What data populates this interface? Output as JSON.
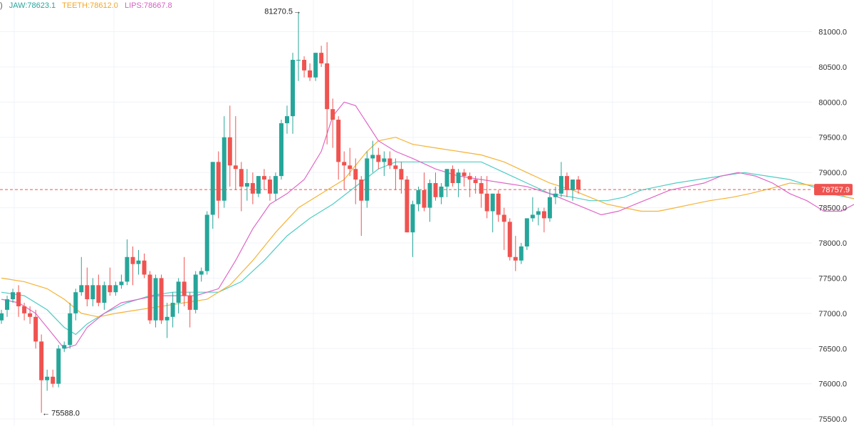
{
  "legend": {
    "prefix": ")",
    "jaw": "JAW:78623.1",
    "teeth": "TEETH:78612.0",
    "lips": "LIPS:78667.8"
  },
  "colors": {
    "up": "#26a69a",
    "down": "#ef5350",
    "jaw": "#4ecdc4",
    "teeth": "#f5b335",
    "lips": "#e066c8",
    "grid": "#f0f3fa",
    "price_line": "#ef5350",
    "price_label": "#ef5350"
  },
  "chart_data": {
    "type": "candlestick",
    "indicator": "Alligator",
    "ylim": [
      75400,
      81450
    ],
    "y_ticks": [
      "81000.0",
      "80500.0",
      "80000.0",
      "79500.0",
      "79000.0",
      "78500.0",
      "78000.0",
      "77500.0",
      "77000.0",
      "76500.0",
      "76000.0",
      "75500.0"
    ],
    "current_price": "78757.9",
    "high_annotation": "81270.5",
    "low_annotation": "75588.0",
    "candles": [
      [
        76900,
        77050,
        76850,
        77000
      ],
      [
        77050,
        77250,
        76950,
        77200
      ],
      [
        77200,
        77350,
        77150,
        77300
      ],
      [
        77300,
        77400,
        76950,
        77100
      ],
      [
        77100,
        77150,
        76900,
        77000
      ],
      [
        77000,
        77100,
        76850,
        76950
      ],
      [
        76950,
        77050,
        76500,
        76600
      ],
      [
        76600,
        76700,
        75588,
        76050
      ],
      [
        76050,
        76200,
        75900,
        76100
      ],
      [
        76100,
        76200,
        75950,
        76000
      ],
      [
        76000,
        76550,
        75950,
        76500
      ],
      [
        76500,
        76600,
        76450,
        76550
      ],
      [
        76550,
        77150,
        76500,
        77000
      ],
      [
        77000,
        77350,
        76900,
        77300
      ],
      [
        77300,
        77800,
        77250,
        77400
      ],
      [
        77400,
        77650,
        77100,
        77200
      ],
      [
        77200,
        77500,
        77100,
        77400
      ],
      [
        77400,
        77550,
        77100,
        77150
      ],
      [
        77150,
        77450,
        77050,
        77400
      ],
      [
        77400,
        77650,
        77250,
        77300
      ],
      [
        77300,
        77450,
        77250,
        77400
      ],
      [
        77400,
        77550,
        77350,
        77450
      ],
      [
        77450,
        78050,
        77400,
        77800
      ],
      [
        77800,
        77950,
        77400,
        77700
      ],
      [
        77700,
        77900,
        77550,
        77750
      ],
      [
        77750,
        77850,
        77500,
        77550
      ],
      [
        77550,
        77600,
        76850,
        76900
      ],
      [
        76900,
        77550,
        76800,
        77500
      ],
      [
        77500,
        77550,
        76850,
        76900
      ],
      [
        76900,
        77150,
        76650,
        76950
      ],
      [
        76950,
        77300,
        76800,
        77150
      ],
      [
        77150,
        77500,
        77000,
        77450
      ],
      [
        77450,
        77800,
        77100,
        77250
      ],
      [
        77250,
        77300,
        76800,
        77050
      ],
      [
        77050,
        77600,
        77000,
        77550
      ],
      [
        77550,
        77650,
        77450,
        77600
      ],
      [
        77600,
        78450,
        77550,
        78400
      ],
      [
        78400,
        79150,
        78200,
        79150
      ],
      [
        79150,
        79300,
        78350,
        78600
      ],
      [
        78600,
        79800,
        78500,
        79500
      ],
      [
        79500,
        79950,
        78800,
        79100
      ],
      [
        79100,
        79800,
        78750,
        79050
      ],
      [
        79050,
        79150,
        78450,
        78800
      ],
      [
        78800,
        79050,
        78600,
        78850
      ],
      [
        78850,
        79000,
        78550,
        78700
      ],
      [
        78700,
        78950,
        78650,
        78950
      ],
      [
        78950,
        79050,
        78750,
        78900
      ],
      [
        78900,
        78950,
        78600,
        78700
      ],
      [
        78700,
        79000,
        78600,
        78950
      ],
      [
        78950,
        79750,
        78900,
        79700
      ],
      [
        79700,
        79950,
        79550,
        79800
      ],
      [
        79800,
        80700,
        79550,
        80600
      ],
      [
        80600,
        81270.5,
        80300,
        80600
      ],
      [
        80600,
        80650,
        80350,
        80450
      ],
      [
        80450,
        80550,
        80300,
        80350
      ],
      [
        80350,
        80700,
        80300,
        80700
      ],
      [
        80700,
        80800,
        80500,
        80550
      ],
      [
        80550,
        80850,
        79400,
        79900
      ],
      [
        79900,
        80050,
        79350,
        79750
      ],
      [
        79750,
        79800,
        78900,
        79150
      ],
      [
        79150,
        79300,
        78750,
        79100
      ],
      [
        79100,
        79350,
        78950,
        79050
      ],
      [
        79050,
        79200,
        78550,
        78900
      ],
      [
        78900,
        78950,
        78100,
        78600
      ],
      [
        78600,
        79300,
        78500,
        79200
      ],
      [
        79200,
        79450,
        79000,
        79250
      ],
      [
        79250,
        79350,
        79050,
        79150
      ],
      [
        79150,
        79300,
        78950,
        79200
      ],
      [
        79200,
        79300,
        79050,
        79100
      ],
      [
        79100,
        79200,
        78750,
        79050
      ],
      [
        79050,
        79150,
        78700,
        78900
      ],
      [
        78900,
        78950,
        78150,
        78150
      ],
      [
        78150,
        78600,
        77800,
        78550
      ],
      [
        78550,
        78800,
        78450,
        78750
      ],
      [
        78750,
        79000,
        78450,
        78500
      ],
      [
        78500,
        78900,
        78300,
        78850
      ],
      [
        78850,
        79000,
        78600,
        78650
      ],
      [
        78650,
        78850,
        78550,
        78800
      ],
      [
        78800,
        79050,
        78650,
        79050
      ],
      [
        79050,
        79100,
        78800,
        78850
      ],
      [
        78850,
        79050,
        78650,
        79000
      ],
      [
        79000,
        79050,
        78800,
        78950
      ],
      [
        78950,
        79000,
        78650,
        78900
      ],
      [
        78900,
        78950,
        78700,
        78850
      ],
      [
        78850,
        78950,
        78500,
        78700
      ],
      [
        78700,
        78950,
        78350,
        78450
      ],
      [
        78450,
        78700,
        78150,
        78700
      ],
      [
        78700,
        78750,
        78300,
        78400
      ],
      [
        78400,
        78500,
        77900,
        78300
      ],
      [
        78300,
        78350,
        77750,
        77800
      ],
      [
        77800,
        78100,
        77600,
        77750
      ],
      [
        77750,
        78000,
        77700,
        77950
      ],
      [
        77950,
        78350,
        77900,
        78350
      ],
      [
        78350,
        78650,
        78300,
        78400
      ],
      [
        78400,
        78500,
        78250,
        78450
      ],
      [
        78450,
        78500,
        78150,
        78350
      ],
      [
        78350,
        78750,
        78300,
        78650
      ],
      [
        78650,
        78800,
        78550,
        78700
      ],
      [
        78700,
        79150,
        78650,
        78950
      ],
      [
        78950,
        79000,
        78650,
        78750
      ],
      [
        78750,
        78900,
        78600,
        78900
      ],
      [
        78900,
        78950,
        78700,
        78757.9
      ]
    ],
    "jaw": [
      [
        0,
        77300
      ],
      [
        4,
        77250
      ],
      [
        8,
        77050
      ],
      [
        11,
        76800
      ],
      [
        13,
        76700
      ],
      [
        15,
        76850
      ],
      [
        18,
        77000
      ],
      [
        22,
        77150
      ],
      [
        26,
        77250
      ],
      [
        30,
        77300
      ],
      [
        34,
        77300
      ],
      [
        38,
        77300
      ],
      [
        42,
        77450
      ],
      [
        46,
        77750
      ],
      [
        50,
        78100
      ],
      [
        54,
        78350
      ],
      [
        58,
        78550
      ],
      [
        62,
        78800
      ],
      [
        66,
        79050
      ],
      [
        69,
        79150
      ],
      [
        72,
        79150
      ],
      [
        76,
        79150
      ],
      [
        80,
        79150
      ],
      [
        84,
        79150
      ],
      [
        88,
        79000
      ],
      [
        92,
        78850
      ],
      [
        96,
        78700
      ],
      [
        100,
        78650
      ],
      [
        103,
        78600
      ],
      [
        106,
        78600
      ],
      [
        109,
        78650
      ],
      [
        112,
        78750
      ],
      [
        115,
        78800
      ],
      [
        118,
        78850
      ],
      [
        122,
        78900
      ],
      [
        126,
        78950
      ],
      [
        130,
        79000
      ],
      [
        134,
        78950
      ],
      [
        138,
        78900
      ],
      [
        142,
        78800
      ],
      [
        145,
        78700
      ],
      [
        148,
        78650
      ],
      [
        151,
        78600
      ],
      [
        155,
        78623.1
      ]
    ],
    "teeth": [
      [
        0,
        77500
      ],
      [
        4,
        77450
      ],
      [
        8,
        77350
      ],
      [
        11,
        77200
      ],
      [
        14,
        77000
      ],
      [
        17,
        76950
      ],
      [
        20,
        77000
      ],
      [
        24,
        77050
      ],
      [
        28,
        77100
      ],
      [
        32,
        77150
      ],
      [
        36,
        77200
      ],
      [
        40,
        77400
      ],
      [
        44,
        77750
      ],
      [
        48,
        78150
      ],
      [
        52,
        78500
      ],
      [
        56,
        78700
      ],
      [
        60,
        78900
      ],
      [
        62,
        79100
      ],
      [
        64,
        79300
      ],
      [
        66,
        79450
      ],
      [
        69,
        79500
      ],
      [
        72,
        79400
      ],
      [
        76,
        79350
      ],
      [
        80,
        79300
      ],
      [
        84,
        79250
      ],
      [
        88,
        79150
      ],
      [
        92,
        79000
      ],
      [
        96,
        78850
      ],
      [
        100,
        78750
      ],
      [
        103,
        78650
      ],
      [
        106,
        78550
      ],
      [
        109,
        78500
      ],
      [
        112,
        78450
      ],
      [
        115,
        78450
      ],
      [
        118,
        78500
      ],
      [
        121,
        78550
      ],
      [
        124,
        78600
      ],
      [
        128,
        78650
      ],
      [
        131,
        78700
      ],
      [
        135,
        78780
      ],
      [
        138,
        78850
      ],
      [
        142,
        78820
      ],
      [
        145,
        78750
      ],
      [
        148,
        78650
      ],
      [
        151,
        78600
      ],
      [
        154,
        78612.0
      ]
    ],
    "lips": [
      [
        0,
        77200
      ],
      [
        3,
        77150
      ],
      [
        6,
        77000
      ],
      [
        9,
        76700
      ],
      [
        11,
        76500
      ],
      [
        13,
        76550
      ],
      [
        15,
        76800
      ],
      [
        18,
        77000
      ],
      [
        21,
        77150
      ],
      [
        24,
        77200
      ],
      [
        27,
        77250
      ],
      [
        30,
        77250
      ],
      [
        34,
        77250
      ],
      [
        38,
        77350
      ],
      [
        41,
        77750
      ],
      [
        44,
        78200
      ],
      [
        47,
        78550
      ],
      [
        50,
        78700
      ],
      [
        53,
        78900
      ],
      [
        56,
        79300
      ],
      [
        58,
        79800
      ],
      [
        60,
        80000
      ],
      [
        62,
        79950
      ],
      [
        64,
        79700
      ],
      [
        66,
        79450
      ],
      [
        69,
        79300
      ],
      [
        72,
        79200
      ],
      [
        76,
        79050
      ],
      [
        80,
        78950
      ],
      [
        84,
        78900
      ],
      [
        88,
        78850
      ],
      [
        92,
        78800
      ],
      [
        96,
        78700
      ],
      [
        99,
        78600
      ],
      [
        102,
        78500
      ],
      [
        105,
        78400
      ],
      [
        108,
        78450
      ],
      [
        111,
        78550
      ],
      [
        114,
        78650
      ],
      [
        117,
        78750
      ],
      [
        120,
        78800
      ],
      [
        123,
        78850
      ],
      [
        126,
        78950
      ],
      [
        129,
        79000
      ],
      [
        132,
        78950
      ],
      [
        135,
        78850
      ],
      [
        138,
        78700
      ],
      [
        141,
        78600
      ],
      [
        144,
        78450
      ],
      [
        147,
        78450
      ],
      [
        150,
        78580
      ],
      [
        152,
        78667.8
      ]
    ]
  }
}
